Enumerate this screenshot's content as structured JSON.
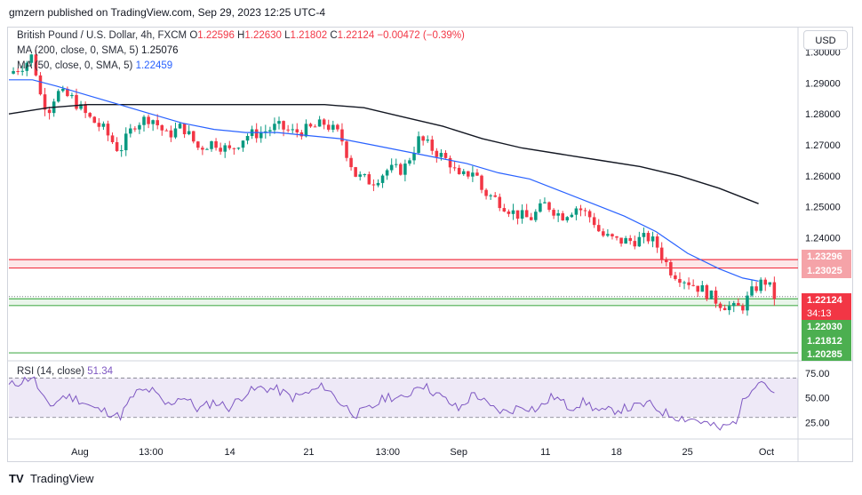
{
  "publisher": "gmzern published on TradingView.com, Sep 29, 2023 12:25 UTC-4",
  "legend": {
    "symbol": "British Pound / U.S. Dollar, 4h, FXCM",
    "o_label": "O",
    "o": "1.22596",
    "h_label": "H",
    "h": "1.22630",
    "l_label": "L",
    "l": "1.21802",
    "c_label": "C",
    "c": "1.22124",
    "change": "−0.00472 (−0.39%)",
    "ma200": "MA (200, close, 0, SMA, 5)",
    "ma200_value": "1.25076",
    "ma50": "MA (50, close, 0, SMA, 5)",
    "ma50_value": "1.22459",
    "rsi": "RSI (14, close)",
    "rsi_value": "51.34"
  },
  "currency_button": "USD",
  "footer_logo": "TV",
  "footer_brand": "TradingView",
  "price_tags": {
    "upper_zone_top": "1.23296",
    "upper_zone_bottom": "1.23025",
    "current": "1.22124",
    "countdown": "34:13",
    "lower_zone_top": "1.22030",
    "lower_zone_bottom": "1.21812",
    "lowest": "1.20285"
  },
  "chart_data": {
    "type": "candlestick",
    "price_axis": {
      "ticks": [
        "1.30000",
        "1.29000",
        "1.28000",
        "1.27000",
        "1.26000",
        "1.25000",
        "1.24000"
      ],
      "tick_values": [
        1.3,
        1.29,
        1.28,
        1.27,
        1.26,
        1.25,
        1.24
      ],
      "range": [
        1.202,
        1.301
      ]
    },
    "time_axis": {
      "labels": [
        "Aug",
        "13:00",
        "14",
        "21",
        "13:00",
        "Sep",
        "11",
        "18",
        "25",
        "Oct"
      ],
      "positions": [
        0.09,
        0.18,
        0.28,
        0.38,
        0.48,
        0.57,
        0.68,
        0.77,
        0.86,
        0.96
      ]
    },
    "rsi_axis": {
      "ticks": [
        "75.00",
        "50.00",
        "25.00"
      ],
      "tick_values": [
        75,
        50,
        25
      ],
      "range": [
        10,
        82
      ]
    },
    "close_path": [
      [
        0.0,
        1.293
      ],
      [
        0.02,
        1.296
      ],
      [
        0.03,
        1.299
      ],
      [
        0.04,
        1.286
      ],
      [
        0.05,
        1.281
      ],
      [
        0.06,
        1.287
      ],
      [
        0.08,
        1.285
      ],
      [
        0.1,
        1.279
      ],
      [
        0.12,
        1.275
      ],
      [
        0.14,
        1.268
      ],
      [
        0.16,
        1.277
      ],
      [
        0.18,
        1.279
      ],
      [
        0.2,
        1.273
      ],
      [
        0.22,
        1.276
      ],
      [
        0.24,
        1.269
      ],
      [
        0.26,
        1.271
      ],
      [
        0.28,
        1.268
      ],
      [
        0.3,
        1.273
      ],
      [
        0.32,
        1.274
      ],
      [
        0.34,
        1.276
      ],
      [
        0.36,
        1.274
      ],
      [
        0.38,
        1.275
      ],
      [
        0.4,
        1.277
      ],
      [
        0.42,
        1.273
      ],
      [
        0.43,
        1.266
      ],
      [
        0.44,
        1.26
      ],
      [
        0.46,
        1.258
      ],
      [
        0.48,
        1.262
      ],
      [
        0.5,
        1.262
      ],
      [
        0.52,
        1.272
      ],
      [
        0.54,
        1.268
      ],
      [
        0.56,
        1.264
      ],
      [
        0.57,
        1.259
      ],
      [
        0.59,
        1.262
      ],
      [
        0.6,
        1.255
      ],
      [
        0.62,
        1.252
      ],
      [
        0.64,
        1.248
      ],
      [
        0.66,
        1.246
      ],
      [
        0.68,
        1.251
      ],
      [
        0.7,
        1.247
      ],
      [
        0.72,
        1.25
      ],
      [
        0.74,
        1.246
      ],
      [
        0.75,
        1.241
      ],
      [
        0.77,
        1.239
      ],
      [
        0.79,
        1.239
      ],
      [
        0.81,
        1.24
      ],
      [
        0.82,
        1.238
      ],
      [
        0.83,
        1.233
      ],
      [
        0.84,
        1.229
      ],
      [
        0.86,
        1.226
      ],
      [
        0.88,
        1.223
      ],
      [
        0.9,
        1.219
      ],
      [
        0.92,
        1.217
      ],
      [
        0.93,
        1.218
      ],
      [
        0.94,
        1.222
      ],
      [
        0.95,
        1.225
      ],
      [
        0.96,
        1.226
      ],
      [
        0.97,
        1.221
      ]
    ],
    "ma200_path": [
      [
        0.0,
        1.28
      ],
      [
        0.05,
        1.282
      ],
      [
        0.1,
        1.283
      ],
      [
        0.2,
        1.283
      ],
      [
        0.3,
        1.283
      ],
      [
        0.4,
        1.283
      ],
      [
        0.45,
        1.282
      ],
      [
        0.5,
        1.279
      ],
      [
        0.55,
        1.276
      ],
      [
        0.6,
        1.272
      ],
      [
        0.65,
        1.269
      ],
      [
        0.7,
        1.267
      ],
      [
        0.75,
        1.265
      ],
      [
        0.8,
        1.263
      ],
      [
        0.85,
        1.26
      ],
      [
        0.9,
        1.256
      ],
      [
        0.95,
        1.251
      ]
    ],
    "ma50_path": [
      [
        0.0,
        1.291
      ],
      [
        0.03,
        1.291
      ],
      [
        0.06,
        1.289
      ],
      [
        0.1,
        1.286
      ],
      [
        0.14,
        1.283
      ],
      [
        0.18,
        1.28
      ],
      [
        0.22,
        1.277
      ],
      [
        0.26,
        1.275
      ],
      [
        0.3,
        1.274
      ],
      [
        0.34,
        1.274
      ],
      [
        0.38,
        1.273
      ],
      [
        0.42,
        1.272
      ],
      [
        0.46,
        1.27
      ],
      [
        0.5,
        1.268
      ],
      [
        0.54,
        1.266
      ],
      [
        0.58,
        1.264
      ],
      [
        0.62,
        1.261
      ],
      [
        0.66,
        1.259
      ],
      [
        0.7,
        1.255
      ],
      [
        0.74,
        1.251
      ],
      [
        0.78,
        1.247
      ],
      [
        0.82,
        1.242
      ],
      [
        0.86,
        1.235
      ],
      [
        0.9,
        1.23
      ],
      [
        0.93,
        1.227
      ],
      [
        0.95,
        1.226
      ]
    ],
    "zones": [
      {
        "top": 1.23296,
        "bottom": 1.23025,
        "color": "#f23645"
      },
      {
        "top": 1.2203,
        "bottom": 1.21812,
        "color": "#4caf50"
      }
    ],
    "support_line": 1.20285,
    "rsi_path": [
      [
        0.0,
        62
      ],
      [
        0.02,
        68
      ],
      [
        0.03,
        72
      ],
      [
        0.04,
        55
      ],
      [
        0.05,
        40
      ],
      [
        0.07,
        52
      ],
      [
        0.09,
        48
      ],
      [
        0.11,
        38
      ],
      [
        0.13,
        35
      ],
      [
        0.14,
        30
      ],
      [
        0.16,
        55
      ],
      [
        0.18,
        58
      ],
      [
        0.2,
        42
      ],
      [
        0.22,
        52
      ],
      [
        0.24,
        38
      ],
      [
        0.26,
        46
      ],
      [
        0.28,
        40
      ],
      [
        0.3,
        55
      ],
      [
        0.32,
        60
      ],
      [
        0.34,
        58
      ],
      [
        0.36,
        50
      ],
      [
        0.38,
        55
      ],
      [
        0.4,
        62
      ],
      [
        0.42,
        45
      ],
      [
        0.44,
        33
      ],
      [
        0.46,
        40
      ],
      [
        0.48,
        52
      ],
      [
        0.5,
        48
      ],
      [
        0.52,
        65
      ],
      [
        0.54,
        55
      ],
      [
        0.56,
        44
      ],
      [
        0.57,
        38
      ],
      [
        0.59,
        55
      ],
      [
        0.61,
        40
      ],
      [
        0.63,
        35
      ],
      [
        0.65,
        42
      ],
      [
        0.67,
        38
      ],
      [
        0.69,
        52
      ],
      [
        0.71,
        40
      ],
      [
        0.73,
        46
      ],
      [
        0.75,
        35
      ],
      [
        0.77,
        38
      ],
      [
        0.79,
        40
      ],
      [
        0.81,
        44
      ],
      [
        0.83,
        35
      ],
      [
        0.85,
        30
      ],
      [
        0.87,
        28
      ],
      [
        0.89,
        22
      ],
      [
        0.9,
        18
      ],
      [
        0.92,
        25
      ],
      [
        0.93,
        45
      ],
      [
        0.94,
        60
      ],
      [
        0.95,
        68
      ],
      [
        0.96,
        65
      ],
      [
        0.97,
        51
      ]
    ],
    "colors": {
      "up": "#089981",
      "down": "#f23645",
      "ma200": "#131722",
      "ma50": "#2962ff",
      "rsi": "#7e57c2"
    }
  }
}
